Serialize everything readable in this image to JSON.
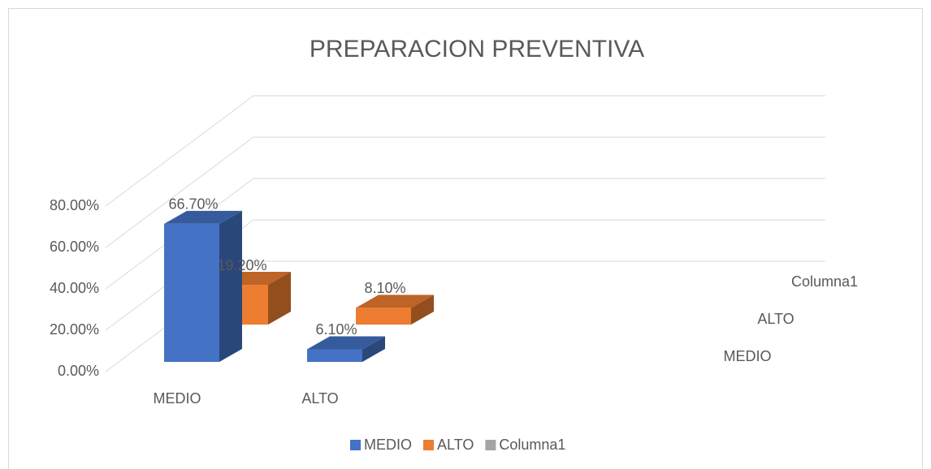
{
  "chart_data": {
    "type": "bar3d",
    "title": "PREPARACION PREVENTIVA",
    "categories": [
      "MEDIO",
      "ALTO"
    ],
    "series": [
      {
        "name": "MEDIO",
        "color": "#4472c4",
        "values": [
          66.7,
          6.1
        ],
        "value_labels": [
          "66.70%",
          "6.10%"
        ]
      },
      {
        "name": "ALTO",
        "color": "#ed7d31",
        "values": [
          19.2,
          8.1
        ],
        "value_labels": [
          "19.20%",
          "8.10%"
        ]
      },
      {
        "name": "Columna1",
        "color": "#a5a5a5",
        "values": [
          null,
          null
        ]
      }
    ],
    "ylim": [
      0,
      80
    ],
    "yticks": [
      {
        "value": 0,
        "label": "0.00%"
      },
      {
        "value": 20,
        "label": "20.00%"
      },
      {
        "value": 40,
        "label": "40.00%"
      },
      {
        "value": 60,
        "label": "60.00%"
      },
      {
        "value": 80,
        "label": "80.00%"
      }
    ],
    "grid": true,
    "legend": "bottom"
  }
}
